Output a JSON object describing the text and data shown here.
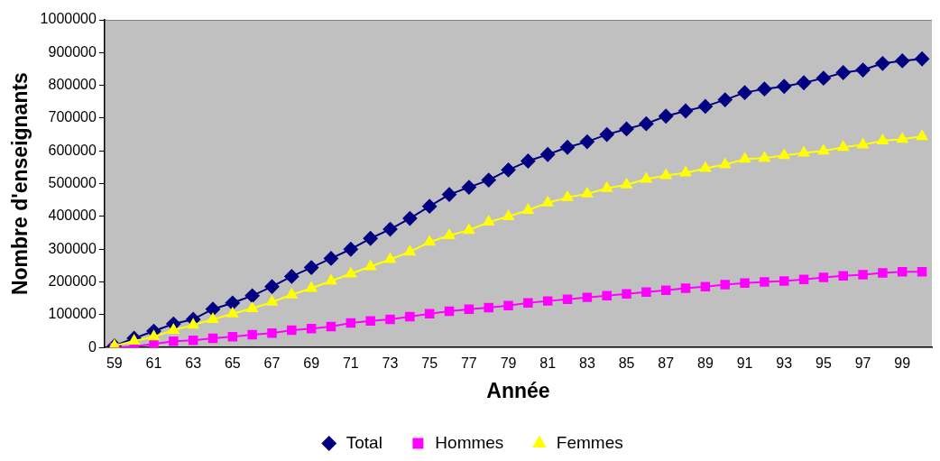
{
  "chart_data": {
    "type": "line",
    "xlabel": "Année",
    "ylabel": "Nombre d'enseignants",
    "categories": [
      "59",
      null,
      "61",
      null,
      "63",
      null,
      "65",
      null,
      "67",
      null,
      "69",
      null,
      "71",
      null,
      "73",
      null,
      "75",
      null,
      "77",
      null,
      "79",
      null,
      "81",
      null,
      "83",
      null,
      "85",
      null,
      "87",
      null,
      "89",
      null,
      "91",
      null,
      "93",
      null,
      "95",
      null,
      "97",
      null,
      "99",
      null
    ],
    "series": [
      {
        "name": "Total",
        "color": "#000080",
        "marker": "diamond",
        "values": [
          5000,
          28000,
          50000,
          72000,
          86000,
          117000,
          136000,
          158000,
          186000,
          217000,
          244000,
          272000,
          300000,
          333000,
          361000,
          394000,
          431000,
          467000,
          489000,
          511000,
          542000,
          569000,
          589000,
          611000,
          628000,
          650000,
          667000,
          683000,
          706000,
          722000,
          736000,
          756000,
          778000,
          789000,
          797000,
          808000,
          822000,
          839000,
          847000,
          867000,
          875000,
          881000
        ]
      },
      {
        "name": "Hommes",
        "color": "#ff00ff",
        "marker": "square",
        "values": [
          0,
          3000,
          11000,
          19000,
          22000,
          28000,
          33000,
          39000,
          44000,
          53000,
          58000,
          64000,
          75000,
          81000,
          86000,
          94000,
          103000,
          111000,
          117000,
          122000,
          128000,
          136000,
          142000,
          147000,
          153000,
          158000,
          164000,
          169000,
          175000,
          181000,
          186000,
          192000,
          197000,
          200000,
          203000,
          208000,
          214000,
          219000,
          222000,
          228000,
          231000,
          231000
        ]
      },
      {
        "name": "Femmes",
        "color": "#ffff00",
        "marker": "triangle",
        "values": [
          5000,
          20000,
          33000,
          53000,
          69000,
          86000,
          103000,
          119000,
          139000,
          161000,
          181000,
          203000,
          225000,
          247000,
          269000,
          292000,
          322000,
          342000,
          358000,
          383000,
          400000,
          419000,
          442000,
          458000,
          469000,
          486000,
          497000,
          514000,
          525000,
          533000,
          547000,
          558000,
          575000,
          578000,
          586000,
          594000,
          600000,
          611000,
          619000,
          631000,
          636000,
          644000
        ]
      }
    ],
    "ylim": [
      0,
      1000000
    ],
    "yticks": [
      0,
      100000,
      200000,
      300000,
      400000,
      500000,
      600000,
      700000,
      800000,
      900000,
      1000000
    ],
    "grid": false,
    "legend": "bottom",
    "line_style": "solid"
  }
}
